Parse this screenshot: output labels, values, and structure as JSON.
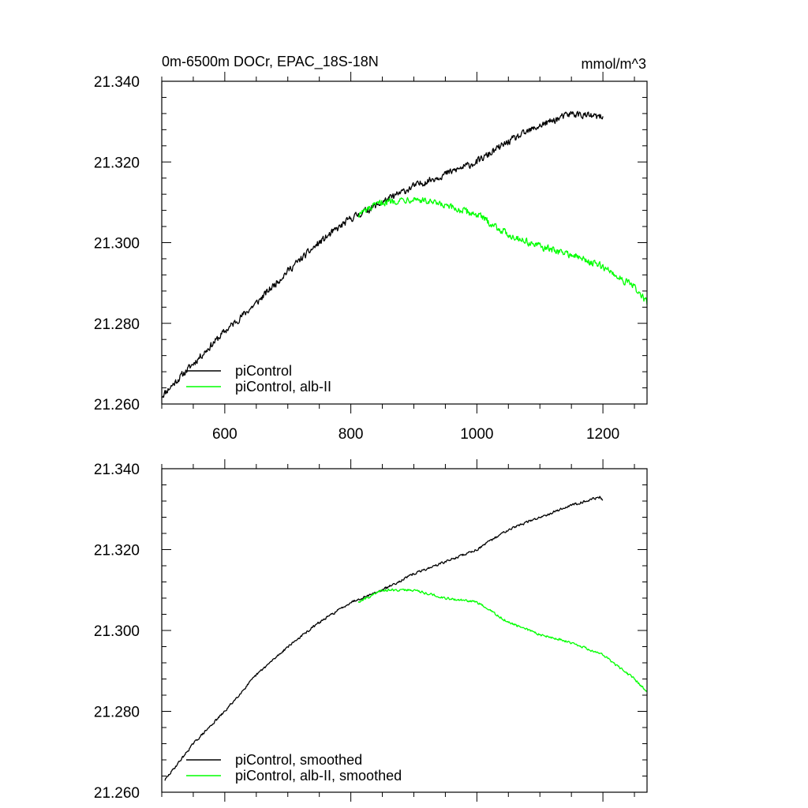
{
  "chart_data": [
    {
      "type": "line",
      "title": "0m-6500m DOCr, EPAC_18S-18N",
      "units": "mmol/m^3",
      "xlim": [
        500,
        1270
      ],
      "ylim": [
        21.26,
        21.34
      ],
      "xticks": [
        600,
        800,
        1000,
        1200
      ],
      "xtick_labels": [
        "600",
        "800",
        "1000",
        "1200"
      ],
      "yticks": [
        21.26,
        21.28,
        21.3,
        21.32,
        21.34
      ],
      "ytick_labels": [
        "21.260",
        "21.280",
        "21.300",
        "21.320",
        "21.340"
      ],
      "legend_position": "bottom-left",
      "series": [
        {
          "name": "piControl",
          "color": "#000000",
          "noise": 0.0012,
          "x": [
            500,
            550,
            600,
            650,
            700,
            750,
            800,
            850,
            900,
            950,
            1000,
            1050,
            1100,
            1150,
            1200
          ],
          "values": [
            21.262,
            21.27,
            21.278,
            21.285,
            21.293,
            21.3,
            21.306,
            21.31,
            21.314,
            21.317,
            21.32,
            21.325,
            21.329,
            21.332,
            21.331
          ]
        },
        {
          "name": "piControl, alb-II",
          "color": "#00ff00",
          "noise": 0.0012,
          "x": [
            812,
            850,
            900,
            950,
            1000,
            1050,
            1100,
            1150,
            1200,
            1250,
            1270
          ],
          "values": [
            21.307,
            21.31,
            21.311,
            21.309,
            21.307,
            21.302,
            21.299,
            21.297,
            21.294,
            21.289,
            21.285
          ]
        }
      ]
    },
    {
      "type": "line",
      "title": "",
      "units": "",
      "xlim": [
        500,
        1270
      ],
      "ylim": [
        21.26,
        21.34
      ],
      "xticks": [
        600,
        800,
        1000,
        1200
      ],
      "xtick_labels": [],
      "yticks": [
        21.26,
        21.28,
        21.3,
        21.32,
        21.34
      ],
      "ytick_labels": [
        "21.260",
        "21.280",
        "21.300",
        "21.320",
        "21.340"
      ],
      "legend_position": "bottom-left",
      "series": [
        {
          "name": "piControl, smoothed",
          "color": "#000000",
          "noise": 0.0004,
          "x": [
            505,
            550,
            600,
            650,
            700,
            750,
            800,
            850,
            900,
            950,
            1000,
            1050,
            1100,
            1150,
            1195,
            1200
          ],
          "values": [
            21.263,
            21.272,
            21.28,
            21.289,
            21.296,
            21.302,
            21.307,
            21.31,
            21.314,
            21.317,
            21.32,
            21.325,
            21.328,
            21.331,
            21.333,
            21.332
          ]
        },
        {
          "name": "piControl, alb-II, smoothed",
          "color": "#00ff00",
          "noise": 0.0004,
          "x": [
            812,
            850,
            900,
            950,
            1000,
            1050,
            1100,
            1150,
            1200,
            1250,
            1270
          ],
          "values": [
            21.307,
            21.31,
            21.31,
            21.308,
            21.307,
            21.302,
            21.299,
            21.297,
            21.294,
            21.288,
            21.285
          ]
        }
      ]
    }
  ]
}
